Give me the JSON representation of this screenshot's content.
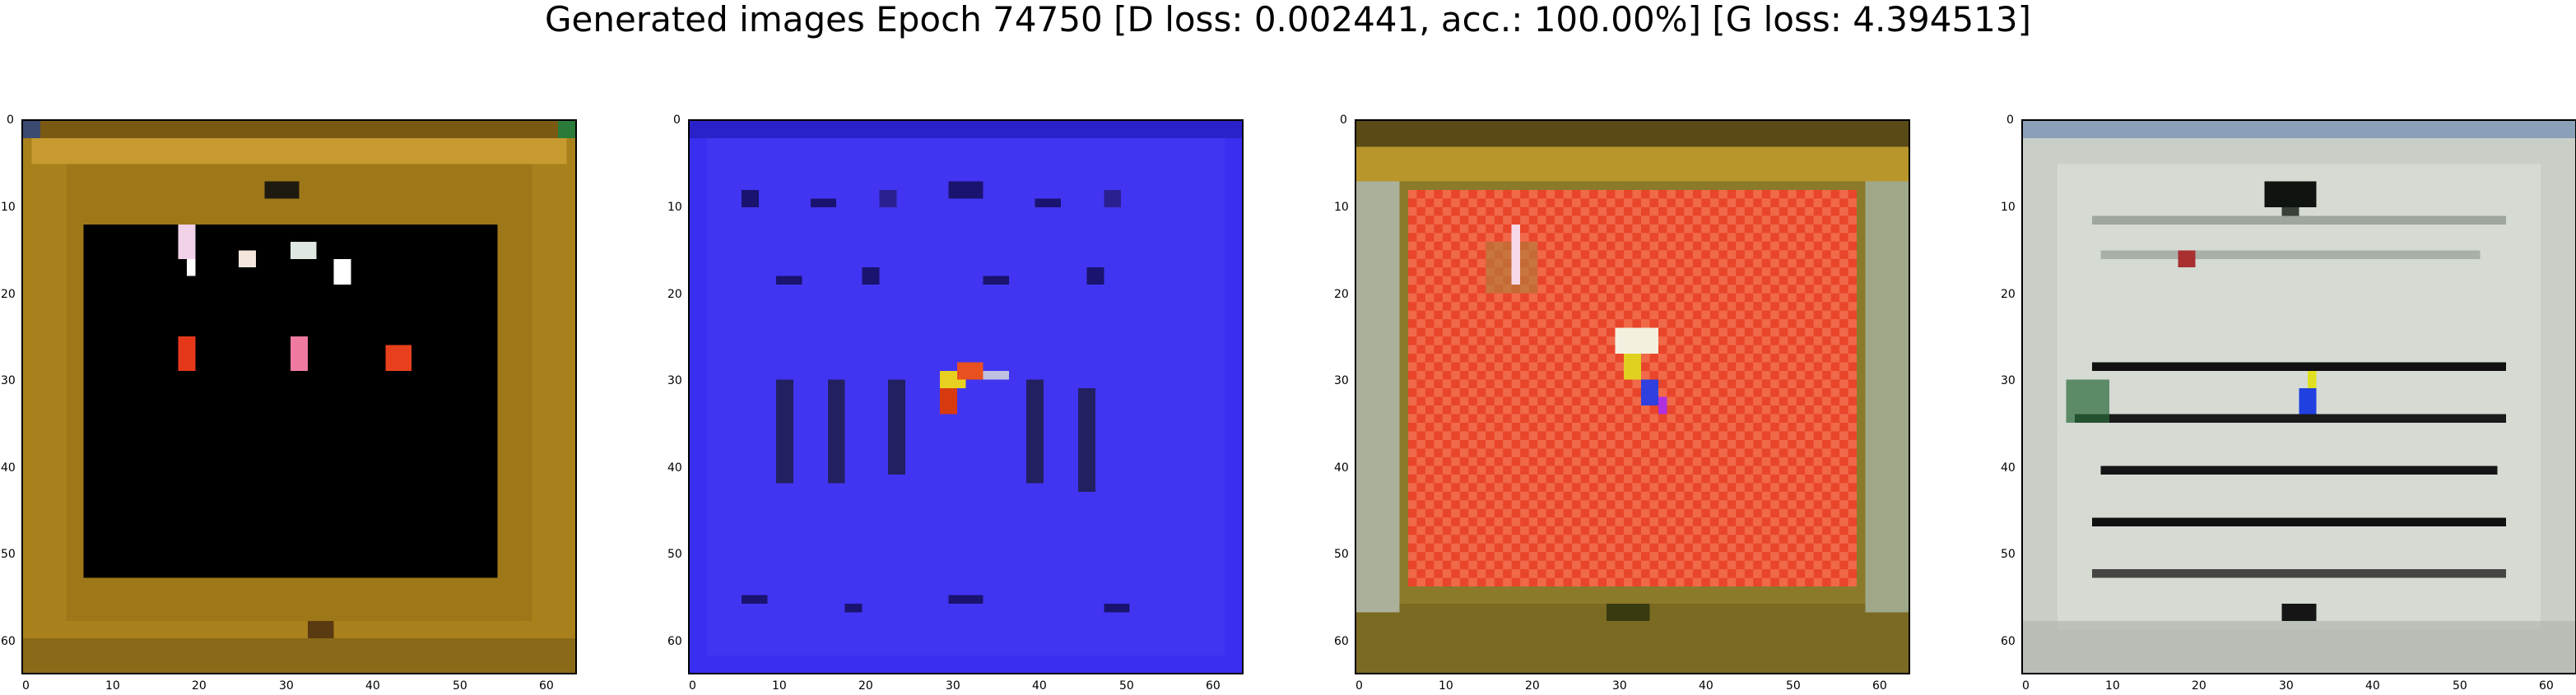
{
  "title": "Generated images Epoch 74750 [D loss: 0.002441, acc.: 100.00%] [G loss: 4.394513]",
  "axes": {
    "x_ticks": [
      "0",
      "10",
      "20",
      "30",
      "40",
      "50",
      "60"
    ],
    "y_ticks": [
      "0",
      "10",
      "20",
      "30",
      "40",
      "50",
      "60"
    ]
  },
  "panels": [
    {
      "label": "generated-image-1",
      "dominant_color": "#a8801c",
      "theme": "brown frame with black center and red spots"
    },
    {
      "label": "generated-image-2",
      "dominant_color": "#3a2ef0",
      "theme": "blue field with dark grid marks and orange blob"
    },
    {
      "label": "generated-image-3",
      "dominant_color": "#e8452a",
      "theme": "olive frame with red checkered center"
    },
    {
      "label": "generated-image-4",
      "dominant_color": "#c9cfc6",
      "theme": "grey-green field with dark horizontal stripes"
    }
  ]
}
